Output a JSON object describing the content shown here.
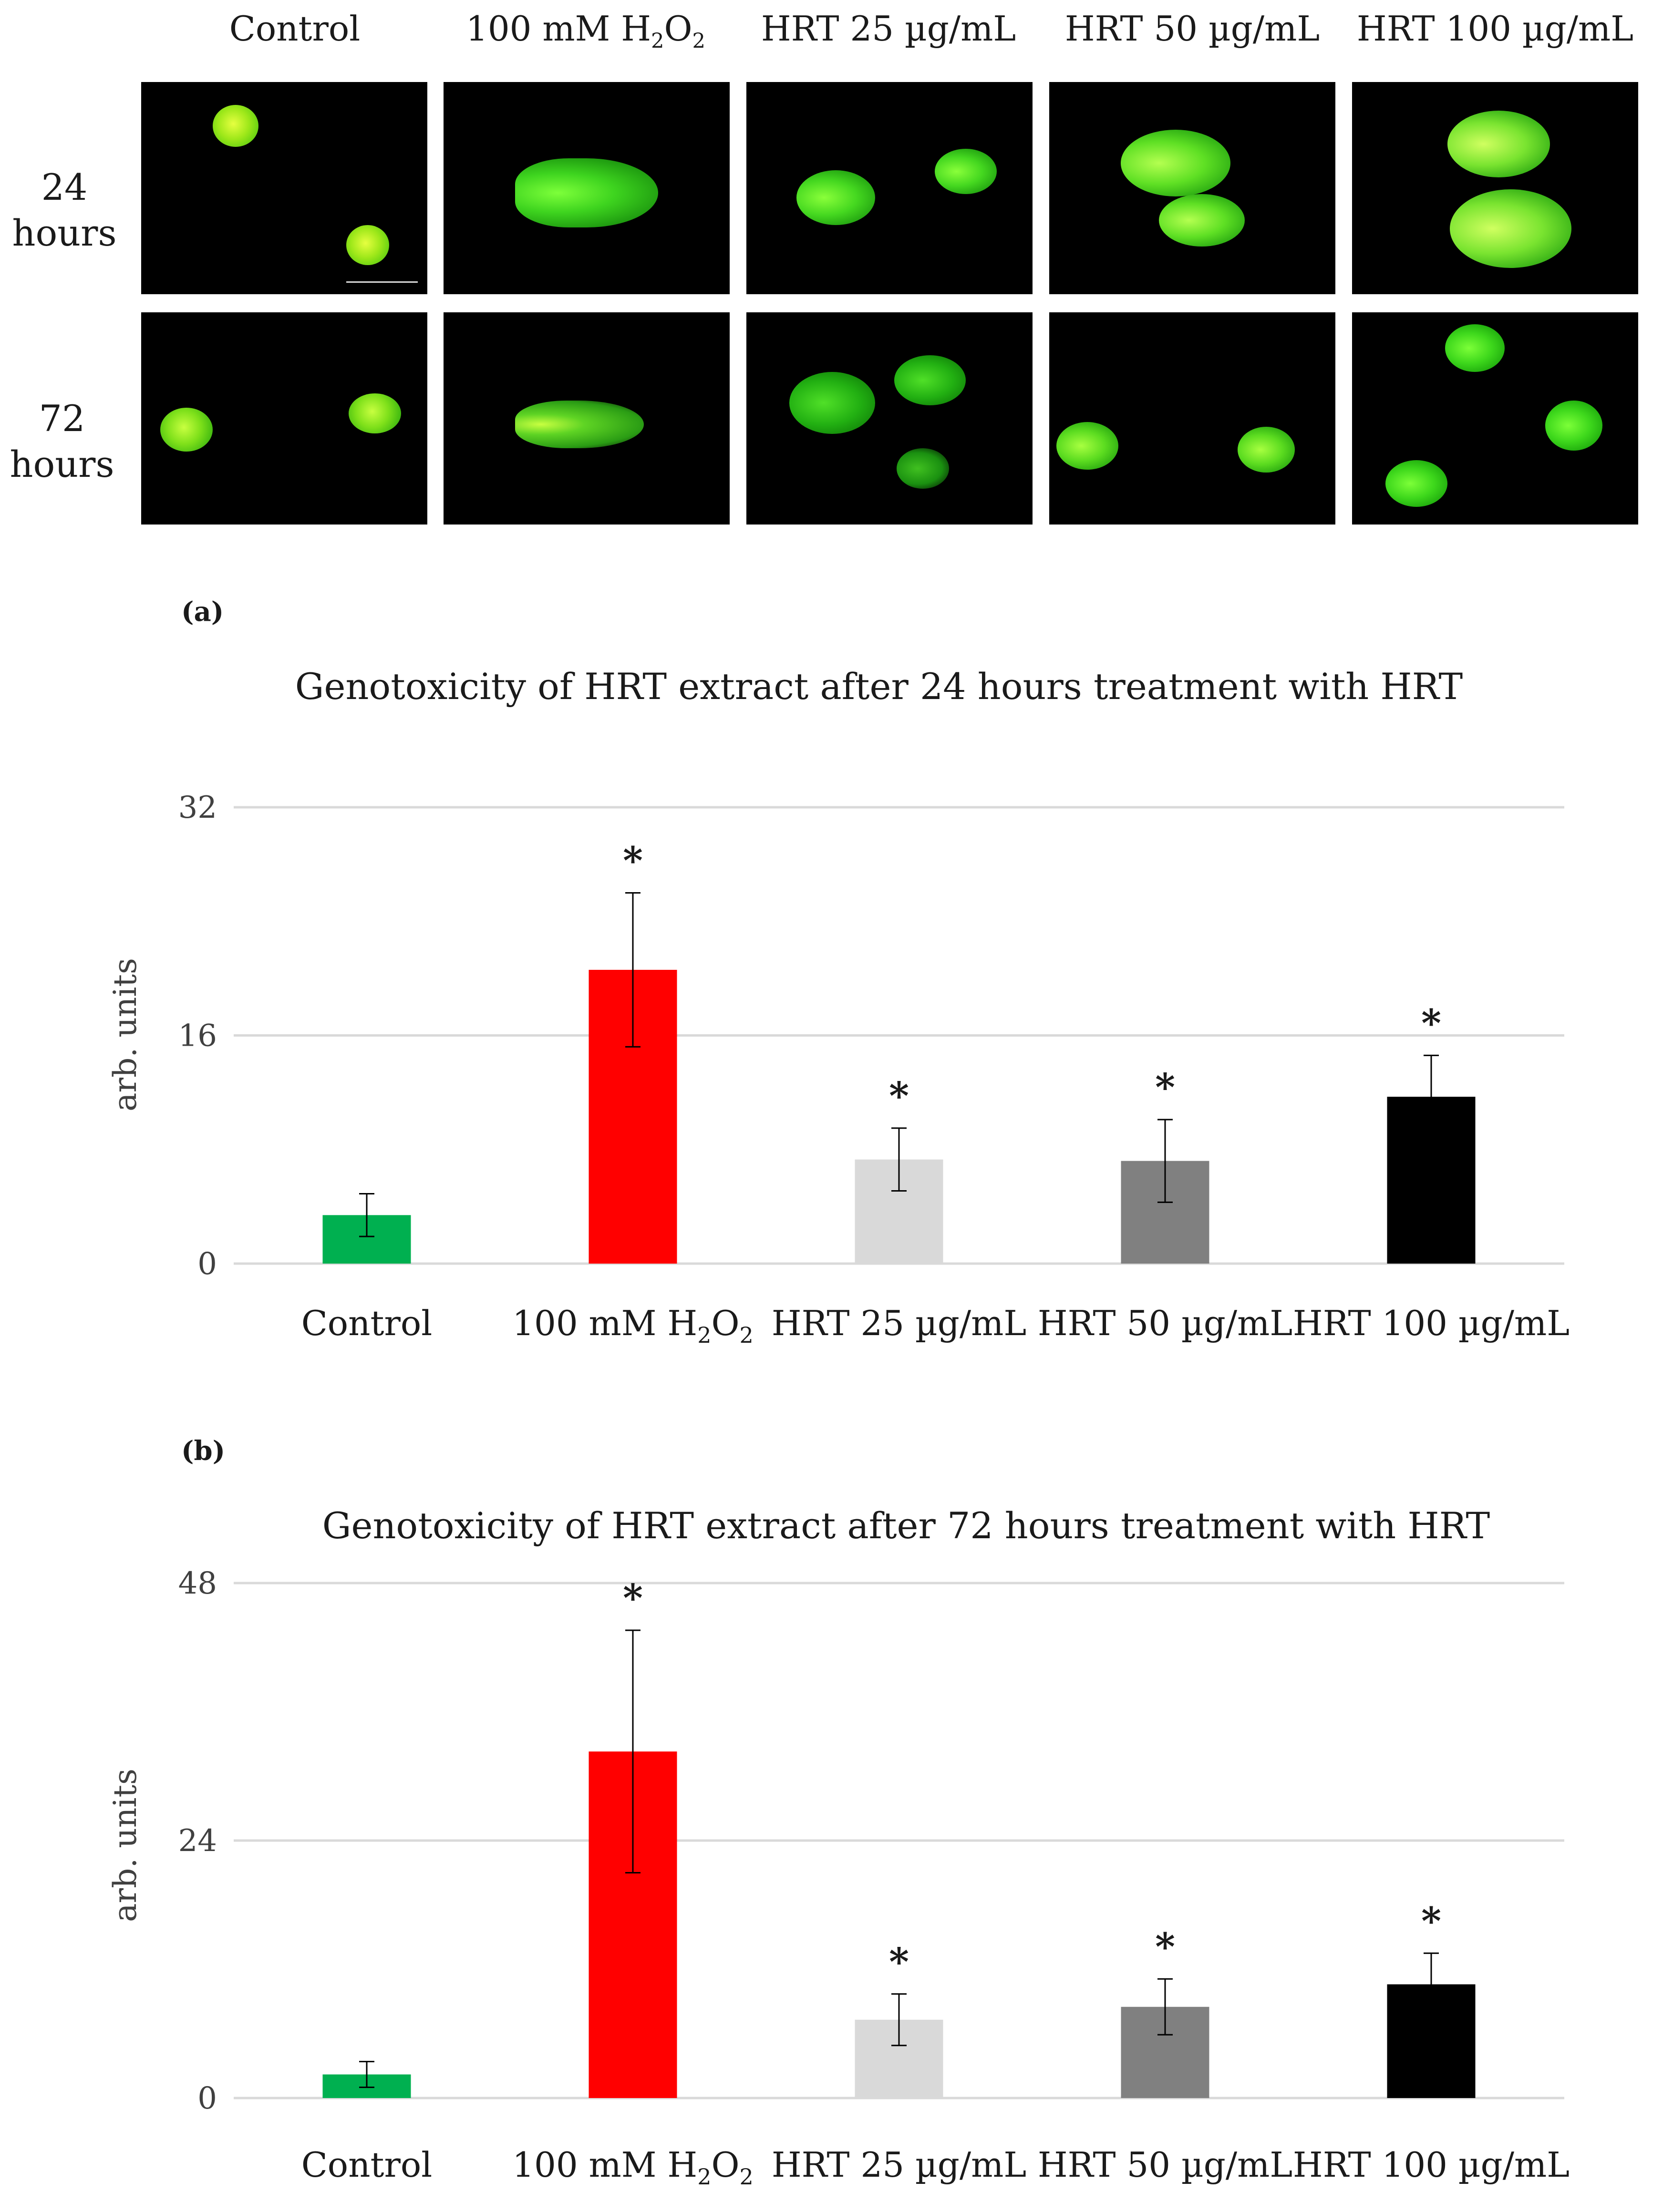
{
  "micrographs": {
    "columns": [
      "Control",
      "100 mM H2O2",
      "HRT 25 µg/mL",
      "HRT 50 µg/mL",
      "HRT 100 µg/mL"
    ],
    "rows": [
      {
        "label_line1": "24",
        "label_line2": "hours"
      },
      {
        "label_line1": "72",
        "label_line2": "hours"
      }
    ]
  },
  "panel_labels": {
    "a": "(a)",
    "b": "(b)"
  },
  "chart_data": [
    {
      "type": "bar",
      "title": "Genotoxicity of HRT extract after 24 hours treatment with HRT",
      "ylabel": "arb. units",
      "xlabel": "",
      "categories": [
        "Control",
        "100 mM H2O2",
        "HRT 25 µg/mL",
        "HRT 50 µg/mL",
        "HRT 100 µg/mL"
      ],
      "values": [
        3.4,
        20.6,
        7.3,
        7.2,
        11.7
      ],
      "errors": [
        1.5,
        5.4,
        2.2,
        2.9,
        2.9
      ],
      "significance": [
        "",
        "*",
        "*",
        "*",
        "*"
      ],
      "colors": [
        "#00b050",
        "#ff0000",
        "#d9d9d9",
        "#808080",
        "#000000"
      ],
      "ylim": [
        0,
        32
      ],
      "yticks": [
        0,
        16,
        32
      ],
      "grid": true
    },
    {
      "type": "bar",
      "title": "Genotoxicity of HRT extract after 72 hours treatment with HRT",
      "ylabel": "arb. units",
      "xlabel": "",
      "categories": [
        "Control",
        "100 mM H2O2",
        "HRT 25 µg/mL",
        "HRT 50 µg/mL",
        "HRT 100 µg/mL"
      ],
      "values": [
        2.2,
        32.3,
        7.3,
        8.5,
        10.6
      ],
      "errors": [
        1.2,
        11.3,
        2.4,
        2.6,
        2.9
      ],
      "significance": [
        "",
        "*",
        "*",
        "*",
        "*"
      ],
      "colors": [
        "#00b050",
        "#ff0000",
        "#d9d9d9",
        "#808080",
        "#000000"
      ],
      "ylim": [
        0,
        48
      ],
      "yticks": [
        0,
        24,
        48
      ],
      "grid": true
    }
  ]
}
